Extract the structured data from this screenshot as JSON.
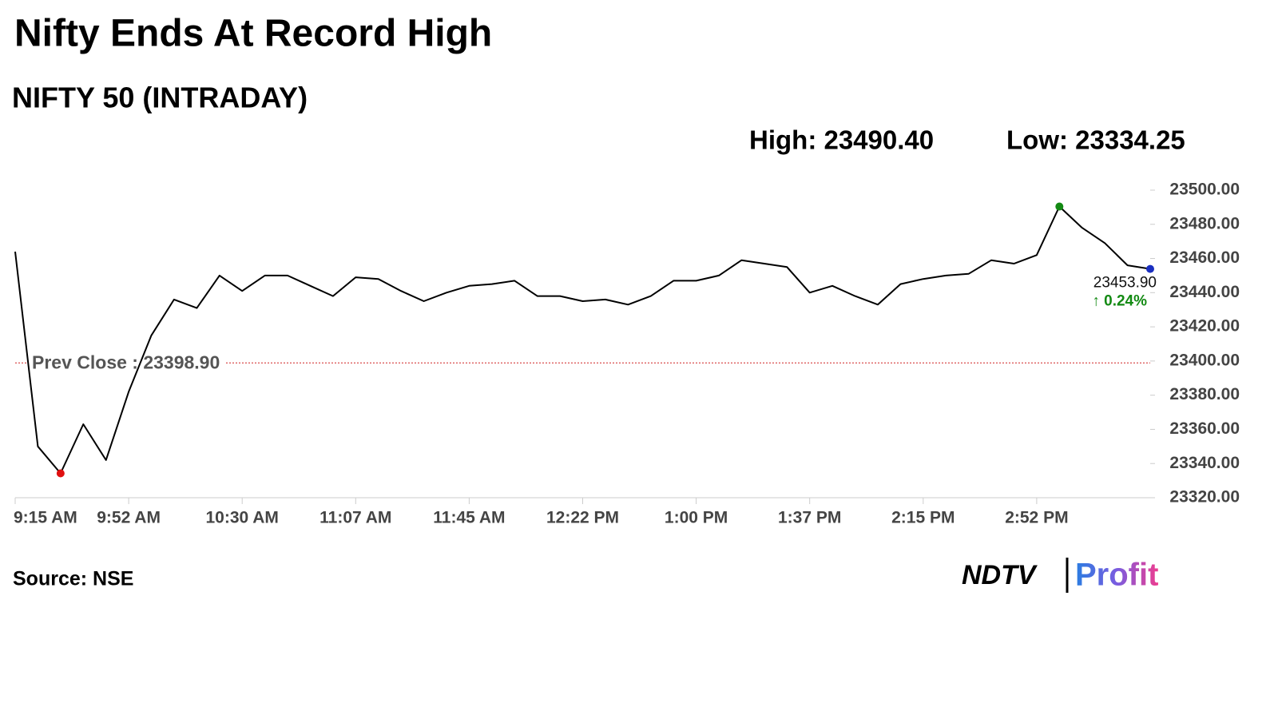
{
  "chart_data": {
    "type": "line",
    "title": "Nifty Ends At Record High",
    "subtitle": "NIFTY 50 (INTRADAY)",
    "high": {
      "value": 23490.4,
      "label": "High: 23490.40"
    },
    "low": {
      "value": 23334.25,
      "label": "Low: 23334.25"
    },
    "prev_close": {
      "value": 23398.9,
      "label": "Prev Close : 23398.90"
    },
    "last": {
      "value": 23453.9,
      "label": "23453.90"
    },
    "change": {
      "value": 0.24,
      "label": "↑ 0.24%"
    },
    "categories": [
      "9:15 AM",
      null,
      null,
      null,
      null,
      "9:52 AM",
      null,
      null,
      null,
      null,
      "10:30 AM",
      null,
      null,
      null,
      null,
      "11:07 AM",
      null,
      null,
      null,
      null,
      "11:45 AM",
      null,
      null,
      null,
      null,
      "12:22 PM",
      null,
      null,
      null,
      null,
      "1:00 PM",
      null,
      null,
      null,
      null,
      "1:37 PM",
      null,
      null,
      null,
      null,
      "2:15 PM",
      null,
      null,
      null,
      null,
      "2:52 PM",
      null,
      null,
      null,
      null,
      null
    ],
    "values": [
      23464,
      23350,
      23334.25,
      23363,
      23342,
      23382,
      23415,
      23436,
      23431,
      23450,
      23441,
      23450,
      23450,
      23444,
      23438,
      23449,
      23448,
      23441,
      23435,
      23440,
      23444,
      23445,
      23447,
      23438,
      23438,
      23435,
      23436,
      23433,
      23438,
      23447,
      23447,
      23450,
      23459,
      23457,
      23455,
      23440,
      23444,
      23438,
      23433,
      23445,
      23448,
      23450,
      23451,
      23459,
      23457,
      23462,
      23490.4,
      23478,
      23469,
      23456,
      23453.9
    ],
    "color": "#000000",
    "high_color": "#138a13",
    "low_color": "#e01010",
    "last_color": "#1a2fc0",
    "prev_close_color": "#d02020",
    "ylim": [
      23320,
      23500
    ],
    "yticks": [
      {
        "value": 23320,
        "label": "23320.00"
      },
      {
        "value": 23340,
        "label": "23340.00"
      },
      {
        "value": 23360,
        "label": "23360.00"
      },
      {
        "value": 23380,
        "label": "23380.00"
      },
      {
        "value": 23400,
        "label": "23400.00"
      },
      {
        "value": 23420,
        "label": "23420.00"
      },
      {
        "value": 23440,
        "label": "23440.00"
      },
      {
        "value": 23460,
        "label": "23460.00"
      },
      {
        "value": 23480,
        "label": "23480.00"
      },
      {
        "value": 23500,
        "label": "23500.00"
      }
    ],
    "source": "Source: NSE",
    "brand": "NDTV",
    "brand_suffix": "Profit"
  }
}
